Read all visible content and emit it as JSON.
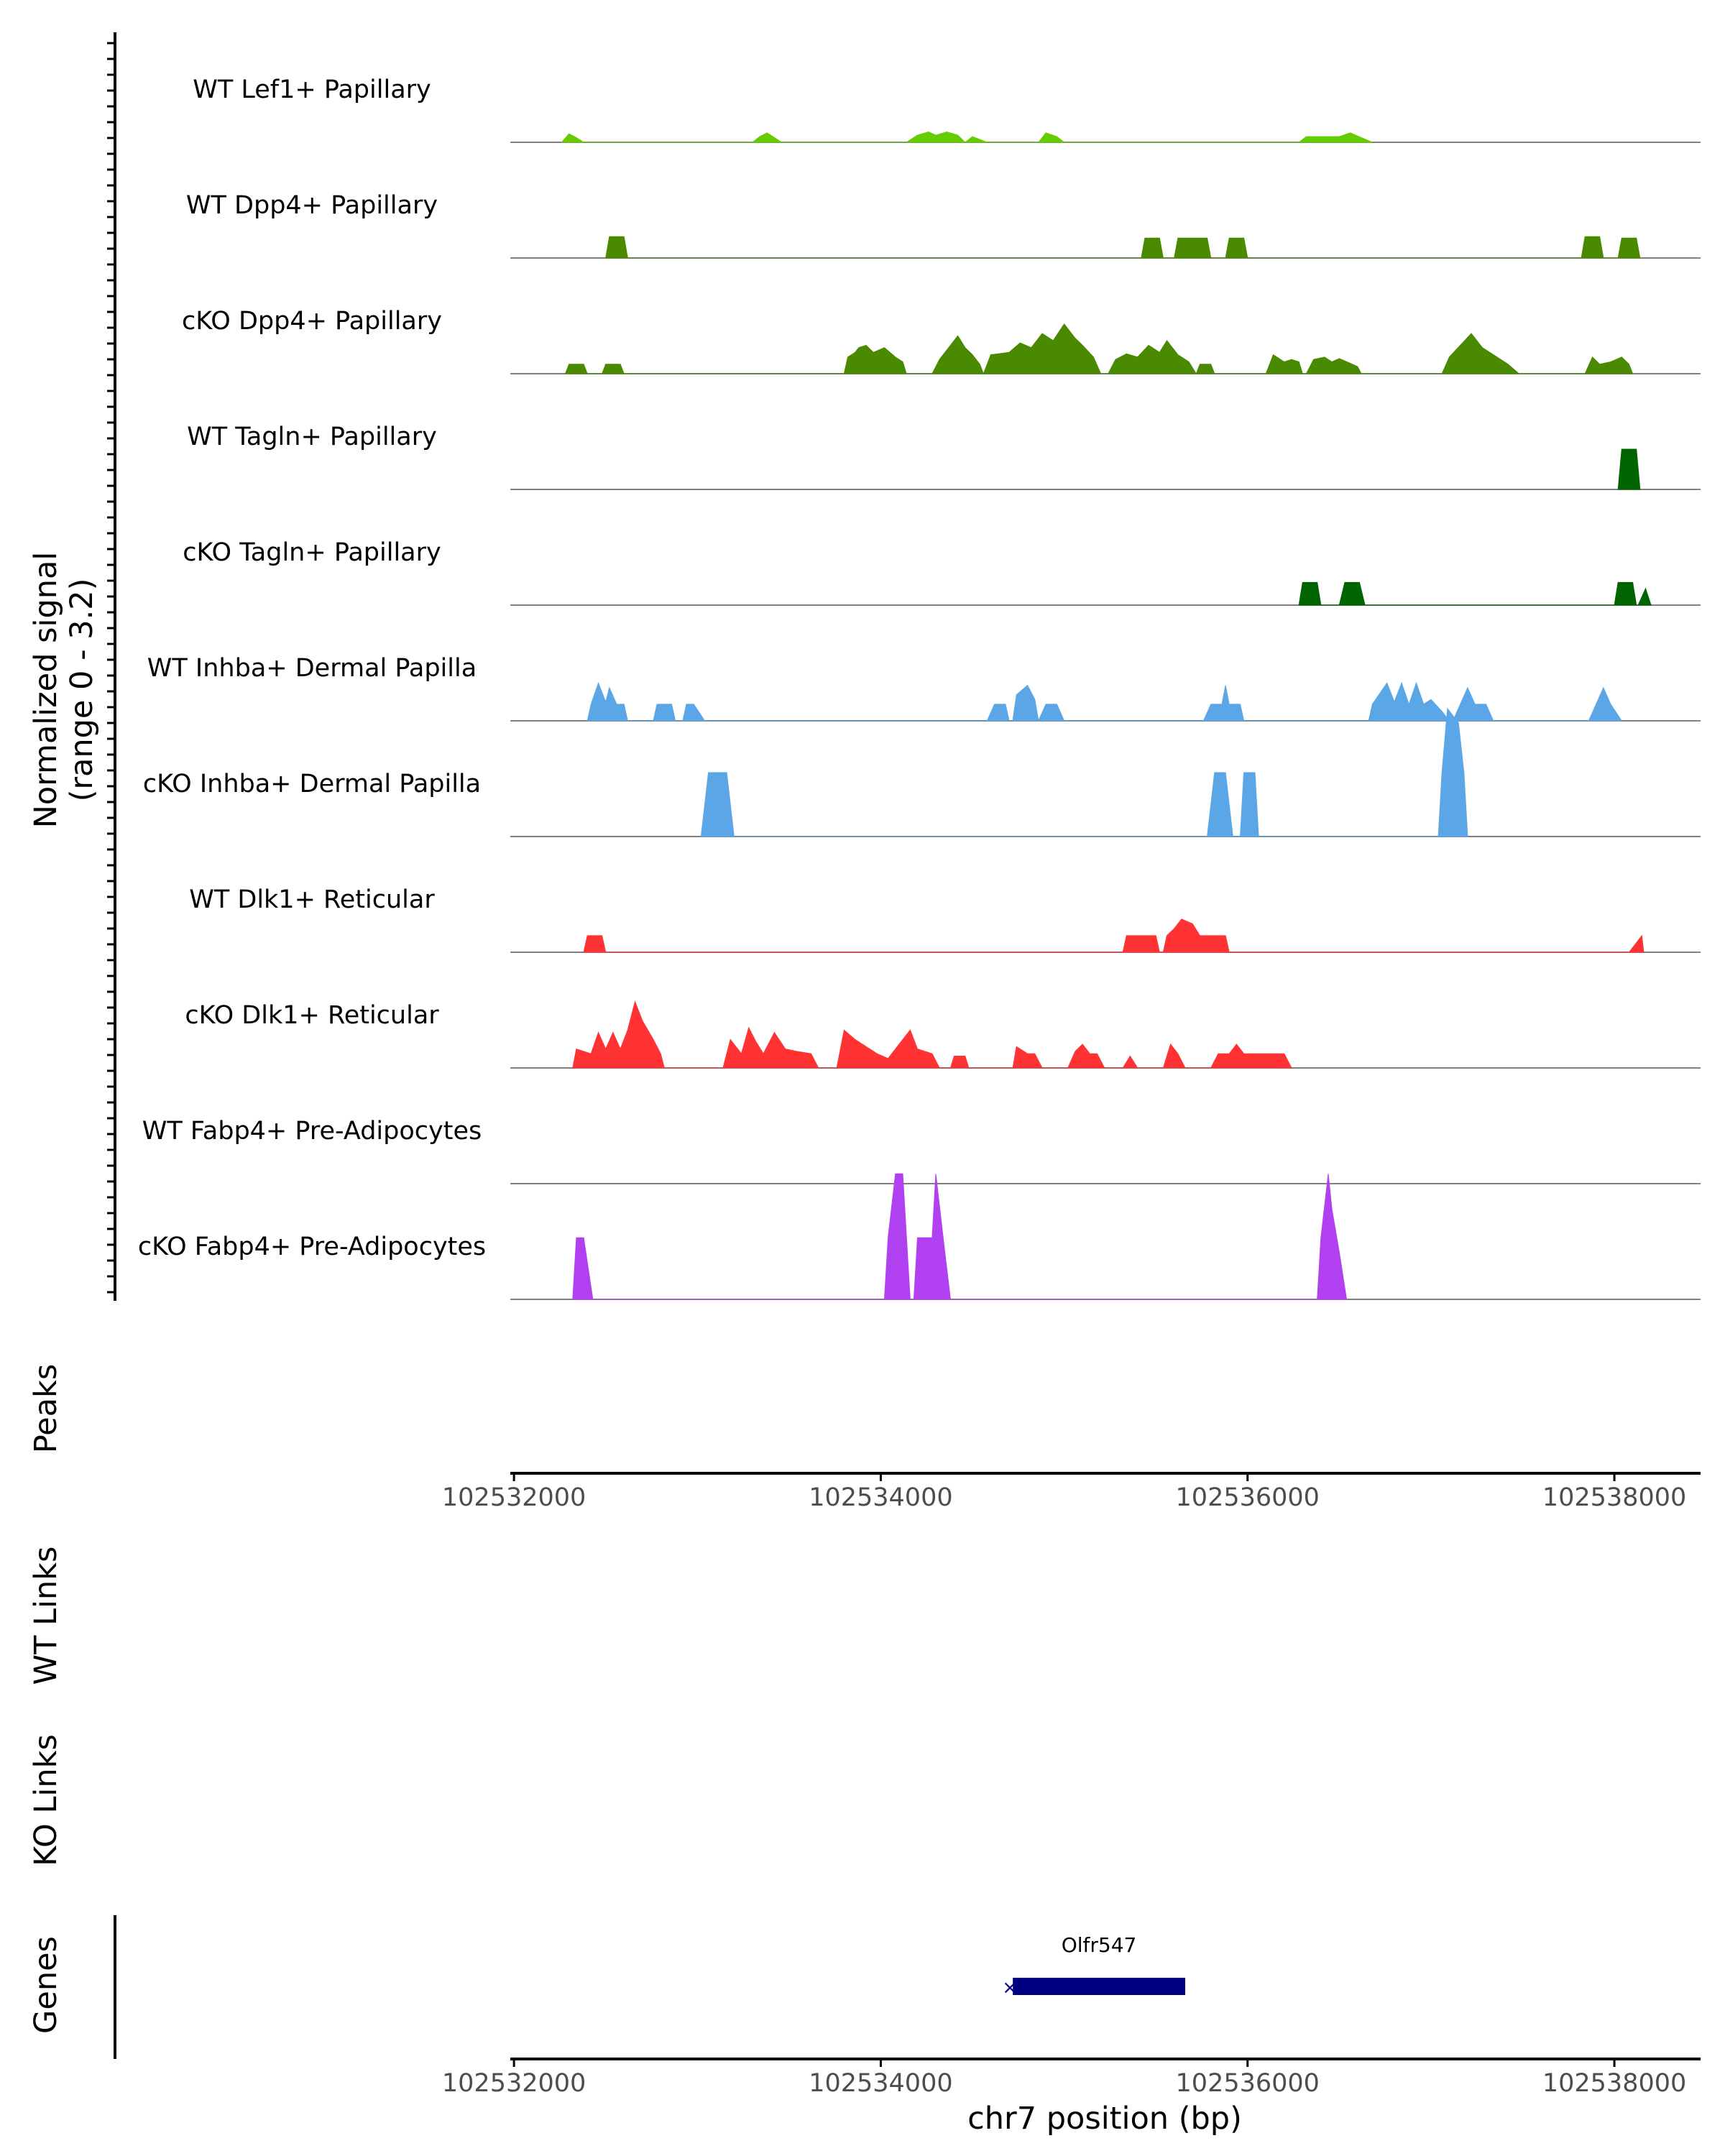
{
  "chart_data": {
    "type": "area",
    "title": "",
    "ylabel_line1": "Normalized signal",
    "ylabel_line2": "(range 0 - 3.2)",
    "ylim": [
      0,
      3.2
    ],
    "xlim": [
      102531980,
      102538470
    ],
    "xlabel": "chr7 position (bp)",
    "xticks": [
      102532000,
      102534000,
      102536000,
      102538000
    ],
    "xtick_labels": [
      "102532000",
      "102534000",
      "102536000",
      "102538000"
    ],
    "series": [
      {
        "name": "WT Lef1+ Papillary",
        "color": "#66cc00",
        "x": [
          102532260,
          102532300,
          102532340,
          102532380,
          102533300,
          102533340,
          102533380,
          102533420,
          102533460,
          102534140,
          102534200,
          102534260,
          102534300,
          102534360,
          102534420,
          102534460,
          102534460,
          102534500,
          102534580,
          102534720,
          102534800,
          102534860,
          102534900,
          102534960,
          102535000,
          102536280,
          102536320,
          102536500,
          102536560,
          102536620,
          102536680
        ],
        "y": [
          0,
          0.18,
          0.1,
          0,
          0,
          0.12,
          0.2,
          0.1,
          0,
          0,
          0.15,
          0.22,
          0.15,
          0.22,
          0.15,
          0,
          0,
          0.12,
          0,
          0,
          0,
          0,
          0.2,
          0.12,
          0,
          0,
          0.12,
          0.12,
          0.2,
          0.1,
          0
        ]
      },
      {
        "name": "WT Dpp4+ Papillary",
        "color": "#4a8a00",
        "x": [
          102532500,
          102532520,
          102532600,
          102532620,
          102535420,
          102535440,
          102535520,
          102535540,
          102535600,
          102535620,
          102535780,
          102535800,
          102535880,
          102535900,
          102535980,
          102536000,
          102537820,
          102537840,
          102537920,
          102537940,
          102538020,
          102538040,
          102538120,
          102538140
        ],
        "y": [
          0,
          0.45,
          0.45,
          0,
          0,
          0.42,
          0.42,
          0,
          0,
          0.42,
          0.42,
          0,
          0,
          0.42,
          0.42,
          0,
          0,
          0.45,
          0.45,
          0,
          0,
          0.42,
          0.42,
          0
        ]
      },
      {
        "name": "cKO Dpp4+ Papillary",
        "color": "#4a8a00",
        "x": [
          102532280,
          102532300,
          102532380,
          102532400,
          102532480,
          102532500,
          102532580,
          102532600,
          102533800,
          102533820,
          102533860,
          102533880,
          102533920,
          102533960,
          102534020,
          102534080,
          102534120,
          102534140,
          102534280,
          102534320,
          102534380,
          102534420,
          102534460,
          102534500,
          102534540,
          102534560,
          102534560,
          102534600,
          102534700,
          102534760,
          102534820,
          102534880,
          102534940,
          102535000,
          102535060,
          102535100,
          102535160,
          102535200,
          102535240,
          102535280,
          102535340,
          102535400,
          102535460,
          102535520,
          102535560,
          102535620,
          102535680,
          102535720,
          102535720,
          102535740,
          102535800,
          102535820,
          102536100,
          102536140,
          102536200,
          102536240,
          102536280,
          102536300,
          102536320,
          102536360,
          102536420,
          102536460,
          102536500,
          102536560,
          102536600,
          102536620,
          102537060,
          102537100,
          102537160,
          102537220,
          102537280,
          102537340,
          102537420,
          102537480,
          102537840,
          102537880,
          102537920,
          102537980,
          102538040,
          102538080,
          102538100
        ],
        "y": [
          0,
          0.2,
          0.2,
          0,
          0,
          0.2,
          0.2,
          0,
          0,
          0.35,
          0.45,
          0.55,
          0.6,
          0.45,
          0.55,
          0.35,
          0.25,
          0,
          0,
          0.3,
          0.6,
          0.8,
          0.55,
          0.4,
          0.2,
          0,
          0,
          0.4,
          0.45,
          0.65,
          0.55,
          0.85,
          0.7,
          1.05,
          0.75,
          0.6,
          0.35,
          0,
          0,
          0.3,
          0.42,
          0.35,
          0.6,
          0.45,
          0.7,
          0.4,
          0.25,
          0,
          0,
          0.2,
          0.2,
          0,
          0,
          0.4,
          0.25,
          0.3,
          0.25,
          0,
          0,
          0.3,
          0.35,
          0.25,
          0.32,
          0.22,
          0.15,
          0,
          0,
          0.35,
          0.6,
          0.85,
          0.55,
          0.4,
          0.2,
          0,
          0,
          0.35,
          0.2,
          0.25,
          0.35,
          0.2,
          0
        ]
      },
      {
        "name": "WT Tagln+ Papillary",
        "color": "#006400",
        "x": [
          102538020,
          102538040,
          102538120,
          102538140
        ],
        "y": [
          0,
          0.85,
          0.85,
          0
        ]
      },
      {
        "name": "cKO Tagln+ Papillary",
        "color": "#006400",
        "x": [
          102536280,
          102536300,
          102536380,
          102536400,
          102536500,
          102536530,
          102536610,
          102536640,
          102538000,
          102538020,
          102538100,
          102538120,
          102538130,
          102538170,
          102538200
        ],
        "y": [
          0,
          0.48,
          0.48,
          0,
          0,
          0.48,
          0.48,
          0,
          0,
          0.48,
          0.48,
          0,
          0,
          0.35,
          0
        ]
      },
      {
        "name": "WT Inhba+ Dermal Papilla",
        "color": "#5aa6e6",
        "x": [
          102532400,
          102532420,
          102532460,
          102532500,
          102532520,
          102532560,
          102532600,
          102532620,
          102532760,
          102532780,
          102532860,
          102532880,
          102532920,
          102532940,
          102532980,
          102533040,
          102534580,
          102534620,
          102534680,
          102534700,
          102534720,
          102534740,
          102534800,
          102534840,
          102534860,
          102534860,
          102534900,
          102534960,
          102535000,
          102535760,
          102535800,
          102535860,
          102535880,
          102535900,
          102535960,
          102535980,
          102536660,
          102536680,
          102536760,
          102536800,
          102536840,
          102536880,
          102536920,
          102536960,
          102537000,
          102537060,
          102537100,
          102537120,
          102537160,
          102537200,
          102537240,
          102537300,
          102537340,
          102537860,
          102537900,
          102537940,
          102537980,
          102538040
        ],
        "y": [
          0,
          0.35,
          0.8,
          0.4,
          0.7,
          0.35,
          0.35,
          0,
          0,
          0.35,
          0.35,
          0,
          0,
          0.35,
          0.35,
          0,
          0,
          0.35,
          0.35,
          0,
          0,
          0.55,
          0.75,
          0.45,
          0,
          0,
          0.35,
          0.35,
          0,
          0,
          0.35,
          0.35,
          0.75,
          0.35,
          0.35,
          0,
          0,
          0.35,
          0.8,
          0.4,
          0.8,
          0.35,
          0.8,
          0.35,
          0.45,
          0.2,
          0,
          0,
          0.35,
          0.7,
          0.35,
          0.35,
          0,
          0,
          0.35,
          0.7,
          0.35,
          0
        ]
      },
      {
        "name": "cKO Inhba+ Dermal Papilla",
        "color": "#5aa6e6",
        "x": [
          102533020,
          102533060,
          102533160,
          102533200,
          102535780,
          102535820,
          102535880,
          102535920,
          102535960,
          102535980,
          102536040,
          102536060,
          102537040,
          102537060,
          102537090,
          102537150,
          102537180,
          102537200
        ],
        "y": [
          0,
          1.35,
          1.35,
          0,
          0,
          1.35,
          1.35,
          0,
          0,
          1.35,
          1.35,
          0,
          0,
          1.35,
          2.7,
          2.4,
          1.35,
          0
        ]
      },
      {
        "name": "WT Dlk1+ Reticular",
        "color": "#ff3333",
        "x": [
          102532380,
          102532400,
          102532480,
          102532500,
          102535320,
          102535340,
          102535500,
          102535520,
          102535540,
          102535560,
          102535600,
          102535640,
          102535700,
          102535740,
          102535780,
          102535880,
          102535900,
          102538080,
          102538120,
          102538150,
          102538160
        ],
        "y": [
          0,
          0.35,
          0.35,
          0,
          0,
          0.35,
          0.35,
          0,
          0,
          0.35,
          0.5,
          0.7,
          0.6,
          0.35,
          0.35,
          0.35,
          0,
          0,
          0.2,
          0.35,
          0
        ]
      },
      {
        "name": "cKO Dlk1+ Reticular",
        "color": "#ff3333",
        "x": [
          102532320,
          102532340,
          102532420,
          102532460,
          102532500,
          102532540,
          102532580,
          102532620,
          102532660,
          102532700,
          102532760,
          102532800,
          102532820,
          102533140,
          102533180,
          102533240,
          102533280,
          102533320,
          102533360,
          102533420,
          102533480,
          102533540,
          102533620,
          102533660,
          102533760,
          102533800,
          102533860,
          102533920,
          102533980,
          102534040,
          102534100,
          102534160,
          102534200,
          102534280,
          102534320,
          102534380,
          102534400,
          102534460,
          102534480,
          102534720,
          102534740,
          102534800,
          102534840,
          102534880,
          102535020,
          102535060,
          102535100,
          102535140,
          102535180,
          102535220,
          102535320,
          102535360,
          102535400,
          102535540,
          102535580,
          102535620,
          102535660,
          102535800,
          102535840,
          102535900,
          102535940,
          102535980,
          102536020,
          102536060,
          102536200,
          102536240
        ],
        "y": [
          0,
          0.4,
          0.3,
          0.75,
          0.4,
          0.75,
          0.4,
          0.8,
          1.4,
          1.0,
          0.6,
          0.3,
          0,
          0,
          0.6,
          0.3,
          0.85,
          0.55,
          0.3,
          0.75,
          0.4,
          0.35,
          0.3,
          0,
          0,
          0.8,
          0.6,
          0.45,
          0.3,
          0.2,
          0.5,
          0.8,
          0.4,
          0.3,
          0,
          0,
          0.25,
          0.25,
          0,
          0,
          0.45,
          0.3,
          0.3,
          0,
          0,
          0.35,
          0.5,
          0.3,
          0.3,
          0,
          0,
          0.25,
          0,
          0,
          0.5,
          0.3,
          0,
          0,
          0.3,
          0.3,
          0.5,
          0.3,
          0.3,
          0.3,
          0.3,
          0
        ]
      },
      {
        "name": "WT Fabp4+ Pre-Adipocytes",
        "color": "#a64dff",
        "x": [],
        "y": []
      },
      {
        "name": "cKO Fabp4+ Pre-Adipocytes",
        "color": "#b040f0",
        "x": [
          102532320,
          102532340,
          102532380,
          102532430,
          102534020,
          102534040,
          102534080,
          102534120,
          102534160,
          102534180,
          102534200,
          102534280,
          102534300,
          102534340,
          102534380,
          102536380,
          102536400,
          102536440,
          102536460,
          102536500,
          102536540
        ],
        "y": [
          0,
          1.3,
          1.3,
          0,
          0,
          1.3,
          2.65,
          2.65,
          0,
          0,
          1.3,
          1.3,
          2.65,
          1.3,
          0,
          0,
          1.3,
          2.65,
          1.9,
          1.0,
          0
        ]
      }
    ],
    "panels": {
      "peaks_label": "Peaks",
      "wt_links_label": "WT Links",
      "ko_links_label": "KO Links",
      "genes_label": "Genes"
    },
    "genes": [
      {
        "name": "Olfr547",
        "start": 102534720,
        "end": 102535660,
        "color": "#000080",
        "strand_glyph": "×"
      }
    ]
  }
}
